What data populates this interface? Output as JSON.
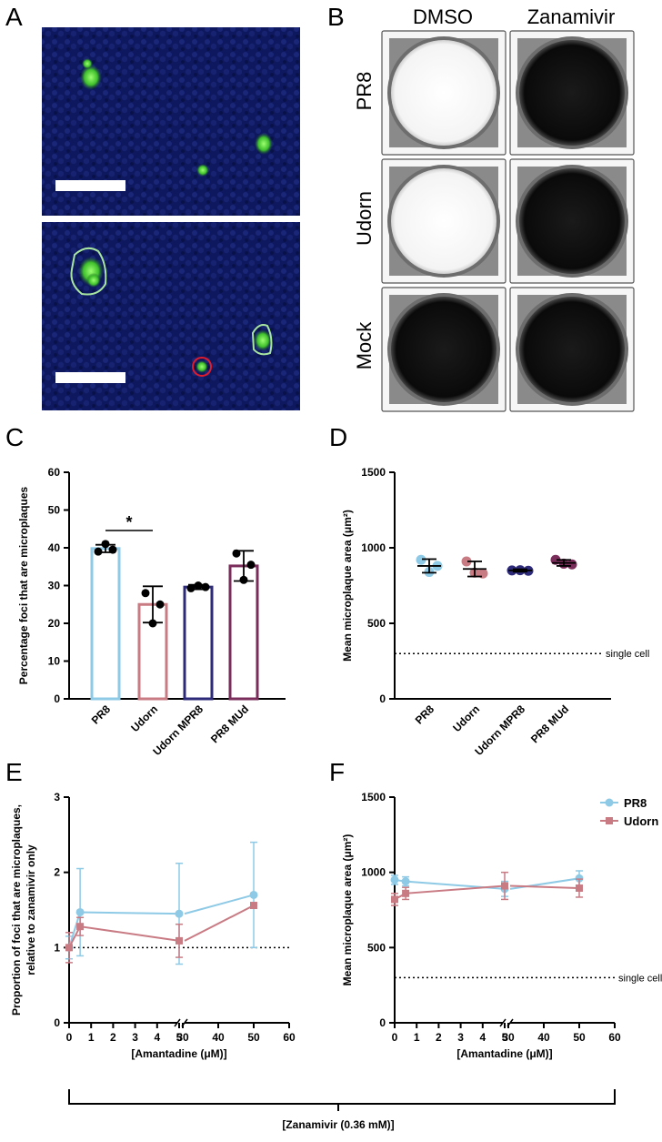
{
  "panels": {
    "a": "A",
    "b": "B",
    "c": "C",
    "d": "D",
    "e": "E",
    "f": "F"
  },
  "panel_b": {
    "columns": [
      "DMSO",
      "Zanamivir"
    ],
    "rows": [
      "PR8",
      "Udorn",
      "Mock"
    ],
    "wells": [
      [
        "white",
        "black"
      ],
      [
        "white",
        "black"
      ],
      [
        "black",
        "black"
      ]
    ]
  },
  "chart_data": [
    {
      "panel": "C",
      "type": "bar",
      "categories": [
        "PR8",
        "Udorn",
        "Udorn MPR8",
        "PR8 MUd"
      ],
      "values": [
        39.8,
        25.0,
        29.6,
        35.2
      ],
      "errors": [
        1.0,
        4.8,
        0.6,
        4.0
      ],
      "points": [
        [
          39.0,
          41.0,
          39.5
        ],
        [
          28.0,
          20.0,
          25.0
        ],
        [
          29.3,
          30.0,
          29.6
        ],
        [
          38.5,
          31.5,
          35.5
        ]
      ],
      "colors": [
        "#8ecae6",
        "#c97b84",
        "#2e2a7a",
        "#7a2d5a"
      ],
      "ylabel": "Percentage foci that are microplaques",
      "ylim": [
        0,
        60
      ],
      "yticks": [
        "0",
        "10",
        "20",
        "30",
        "40",
        "50",
        "60"
      ],
      "annotation": "*"
    },
    {
      "panel": "D",
      "type": "scatter",
      "categories": [
        "PR8",
        "Udorn",
        "Udorn MPR8",
        "PR8 MUd"
      ],
      "means": [
        880,
        860,
        850,
        900
      ],
      "errors": [
        45,
        50,
        8,
        20
      ],
      "points": [
        [
          920,
          880,
          840
        ],
        [
          910,
          830,
          835
        ],
        [
          850,
          848,
          852
        ],
        [
          920,
          890,
          895
        ]
      ],
      "colors": [
        "#8ecae6",
        "#c97b84",
        "#2e2a7a",
        "#7a2d5a"
      ],
      "ylabel": "Mean microplaque area (μm²)",
      "ylim": [
        0,
        1500
      ],
      "yticks": [
        "0",
        "500",
        "1000",
        "1500"
      ],
      "reference": {
        "value": 300,
        "label": "single cell"
      }
    },
    {
      "panel": "E",
      "type": "line",
      "x": [
        0,
        0.5,
        5,
        50
      ],
      "ylabel": "Proportion of foci that are microplaques, relative to zanamivir only",
      "xlabel": "[Amantadine (μM)]",
      "ylim": [
        0,
        3
      ],
      "yticks": [
        "0",
        "1",
        "2",
        "3"
      ],
      "xticks_left": [
        "0",
        "1",
        "2",
        "3",
        "4",
        "5"
      ],
      "xticks_right": [
        "30",
        "40",
        "50",
        "60"
      ],
      "reference": {
        "value": 1
      },
      "series": [
        {
          "name": "PR8",
          "values": [
            1.0,
            1.47,
            1.45,
            1.7
          ],
          "err": [
            0.15,
            0.58,
            0.67,
            0.7
          ],
          "color": "#8ecae6",
          "marker": "circle"
        },
        {
          "name": "Udorn",
          "values": [
            1.0,
            1.28,
            1.09,
            1.56
          ],
          "err": [
            0.2,
            0.12,
            0.22,
            0.0
          ],
          "color": "#c97b84",
          "marker": "square"
        }
      ]
    },
    {
      "panel": "F",
      "type": "line",
      "x": [
        0,
        0.5,
        5,
        50
      ],
      "ylabel": "Mean microplaque area (μm²)",
      "xlabel": "[Amantadine (μM)]",
      "ylim": [
        0,
        1500
      ],
      "yticks": [
        "0",
        "500",
        "1000",
        "1500"
      ],
      "xticks_left": [
        "0",
        "1",
        "2",
        "3",
        "4",
        "5"
      ],
      "xticks_right": [
        "30",
        "40",
        "50",
        "60"
      ],
      "reference": {
        "value": 300,
        "label": "single cell"
      },
      "legend": {
        "placement": "top-right"
      },
      "series": [
        {
          "name": "PR8",
          "values": [
            950,
            940,
            890,
            960
          ],
          "err": [
            30,
            30,
            50,
            50
          ],
          "color": "#8ecae6",
          "marker": "circle"
        },
        {
          "name": "Udorn",
          "values": [
            820,
            860,
            910,
            895
          ],
          "err": [
            40,
            40,
            90,
            60
          ],
          "color": "#c97b84",
          "marker": "square"
        }
      ]
    }
  ],
  "bottom_bracket": "[Zanamivir (0.36 mM)]"
}
